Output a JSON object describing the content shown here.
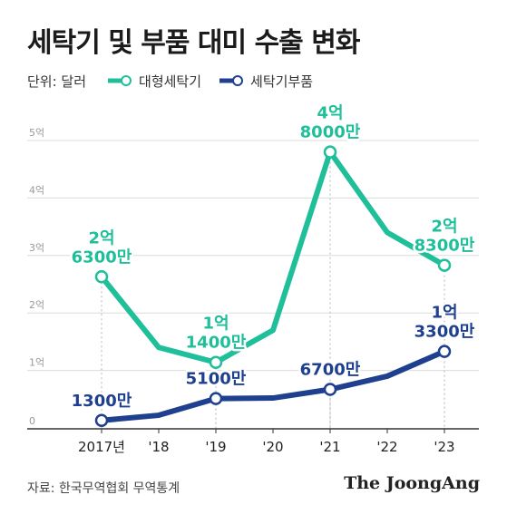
{
  "title": "세탁기 및 부품 대미 수출 변화",
  "unit_label": "단위: 달러",
  "colors": {
    "large_washer": "#1fbf9a",
    "parts": "#1f3f8f",
    "grid": "#dcdcdc",
    "axis": "#333333"
  },
  "chart_data": {
    "type": "line",
    "title": "세탁기 및 부품 대미 수출 변화",
    "ylim": [
      0,
      5
    ],
    "y_ticks": [
      {
        "value": 0,
        "label": "0"
      },
      {
        "value": 1,
        "label": "1억"
      },
      {
        "value": 2,
        "label": "2억"
      },
      {
        "value": 3,
        "label": "3억"
      },
      {
        "value": 4,
        "label": "4억"
      },
      {
        "value": 5,
        "label": "5억"
      }
    ],
    "categories": [
      "2017년",
      "'18",
      "'19",
      "'20",
      "'21",
      "'22",
      "'23"
    ],
    "grid": true,
    "legend_position": "top-left",
    "series": [
      {
        "name": "대형세탁기",
        "color_key": "large_washer",
        "values": [
          2.63,
          1.4,
          1.14,
          1.7,
          4.8,
          3.4,
          2.83
        ],
        "labels": [
          [
            "2억",
            "6300만"
          ],
          null,
          [
            "1억",
            "1400만"
          ],
          null,
          [
            "4억",
            "8000만"
          ],
          null,
          [
            "2억",
            "8300만"
          ]
        ]
      },
      {
        "name": "세탁기부품",
        "color_key": "parts",
        "values": [
          0.13,
          0.22,
          0.51,
          0.52,
          0.67,
          0.9,
          1.33
        ],
        "labels": [
          [
            "1300만"
          ],
          null,
          [
            "5100만"
          ],
          null,
          [
            "6700만"
          ],
          null,
          [
            "1억",
            "3300만"
          ]
        ]
      }
    ]
  },
  "footer": {
    "source": "자료: 한국무역협회 무역통계",
    "brand": "The JoongAng"
  }
}
